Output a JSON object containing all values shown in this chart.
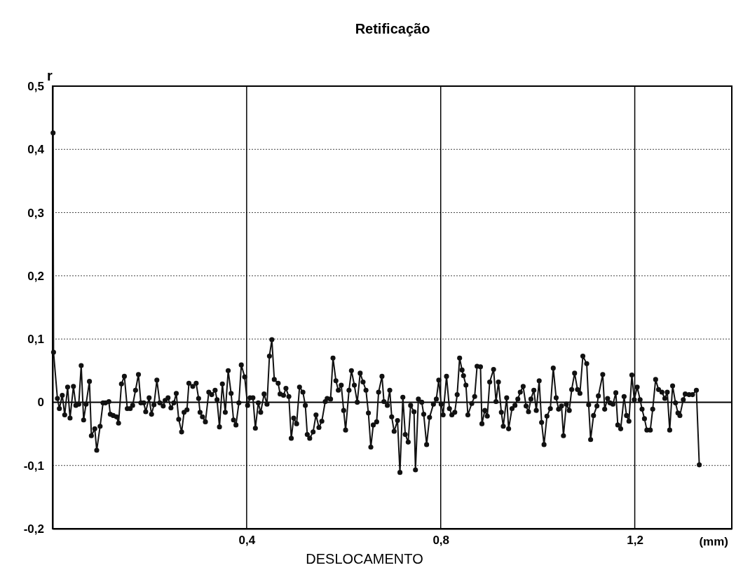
{
  "chart_data": {
    "type": "line",
    "title": "Retificação",
    "xlabel": "DESLOCAMENTO",
    "ylabel": "r",
    "annotations": [
      "(mm)"
    ],
    "xlim": [
      0,
      1.4
    ],
    "xticks": [
      {
        "value": 0.4,
        "label": "0,4"
      },
      {
        "value": 0.8,
        "label": "0,8"
      },
      {
        "value": 1.2,
        "label": "1,2"
      }
    ],
    "ylim": [
      -0.2,
      0.5
    ],
    "yticks": [
      {
        "value": -0.2,
        "label": "-0,2"
      },
      {
        "value": -0.1,
        "label": "-0,1"
      },
      0,
      {
        "value": 0.1,
        "label": "0,1"
      },
      {
        "value": 0.2,
        "label": "0,2"
      },
      {
        "value": 0.3,
        "label": "0,3"
      },
      {
        "value": 0.4,
        "label": "0,4"
      },
      {
        "value": 0.5,
        "label": "0,5"
      }
    ],
    "grid": true,
    "marker": "circle",
    "line_style": "solid",
    "ref_lines": [
      {
        "axis": "y",
        "value": 0,
        "color": "#000000",
        "line_style": "solid"
      }
    ],
    "series": [
      {
        "color": "#111111",
        "x": [
          0.001,
          0.002,
          0.01,
          0.014,
          0.02,
          0.025,
          0.031,
          0.036,
          0.043,
          0.048,
          0.054,
          0.059,
          0.064,
          0.069,
          0.076,
          0.08,
          0.087,
          0.091,
          0.098,
          0.104,
          0.109,
          0.116,
          0.119,
          0.125,
          0.132,
          0.136,
          0.142,
          0.148,
          0.154,
          0.16,
          0.165,
          0.171,
          0.177,
          0.182,
          0.188,
          0.192,
          0.199,
          0.204,
          0.209,
          0.215,
          0.221,
          0.228,
          0.232,
          0.238,
          0.244,
          0.25,
          0.255,
          0.26,
          0.266,
          0.271,
          0.277,
          0.281,
          0.289,
          0.296,
          0.301,
          0.304,
          0.309,
          0.315,
          0.322,
          0.328,
          0.335,
          0.339,
          0.344,
          0.35,
          0.356,
          0.362,
          0.368,
          0.373,
          0.378,
          0.384,
          0.389,
          0.396,
          0.402,
          0.407,
          0.413,
          0.418,
          0.424,
          0.429,
          0.436,
          0.442,
          0.447,
          0.452,
          0.457,
          0.465,
          0.469,
          0.476,
          0.481,
          0.487,
          0.492,
          0.497,
          0.503,
          0.509,
          0.516,
          0.521,
          0.525,
          0.53,
          0.537,
          0.543,
          0.549,
          0.555,
          0.562,
          0.566,
          0.573,
          0.578,
          0.584,
          0.589,
          0.595,
          0.6,
          0.604,
          0.611,
          0.616,
          0.622,
          0.628,
          0.634,
          0.64,
          0.646,
          0.651,
          0.656,
          0.661,
          0.668,
          0.672,
          0.679,
          0.683,
          0.69,
          0.695,
          0.699,
          0.704,
          0.711,
          0.716,
          0.722,
          0.727,
          0.733,
          0.738,
          0.745,
          0.748,
          0.754,
          0.761,
          0.765,
          0.771,
          0.777,
          0.785,
          0.791,
          0.796,
          0.801,
          0.805,
          0.812,
          0.818,
          0.823,
          0.829,
          0.834,
          0.839,
          0.844,
          0.847,
          0.852,
          0.856,
          0.864,
          0.87,
          0.875,
          0.882,
          0.885,
          0.891,
          0.896,
          0.901,
          0.909,
          0.914,
          0.919,
          0.925,
          0.929,
          0.936,
          0.94,
          0.947,
          0.953,
          0.959,
          0.964,
          0.97,
          0.976,
          0.981,
          0.986,
          0.992,
          0.997,
          1.003,
          1.008,
          1.013,
          1.019,
          1.026,
          1.032,
          1.038,
          1.043,
          1.049,
          1.053,
          1.059,
          1.065,
          1.07,
          1.076,
          1.082,
          1.087,
          1.093,
          1.101,
          1.105,
          1.109,
          1.115,
          1.122,
          1.125,
          1.134,
          1.138,
          1.144,
          1.149,
          1.155,
          1.161,
          1.165,
          1.171,
          1.178,
          1.183,
          1.188,
          1.194,
          1.199,
          1.205,
          1.211,
          1.215,
          1.22,
          1.225,
          1.232,
          1.237,
          1.243,
          1.249,
          1.256,
          1.262,
          1.267,
          1.272,
          1.278,
          1.284,
          1.289,
          1.293,
          1.3,
          1.304,
          1.312,
          1.319,
          1.327,
          1.333
        ],
        "values": [
          0.426,
          0.079,
          0.006,
          -0.01,
          0.011,
          -0.02,
          0.024,
          -0.025,
          0.025,
          -0.005,
          -0.003,
          0.058,
          -0.028,
          -0.003,
          0.033,
          -0.053,
          -0.042,
          -0.076,
          -0.038,
          -0.001,
          -0.001,
          0.001,
          -0.019,
          -0.021,
          -0.023,
          -0.033,
          0.029,
          0.041,
          -0.01,
          -0.01,
          -0.005,
          0.019,
          0.044,
          -0.001,
          -0.001,
          -0.015,
          0.007,
          -0.019,
          -0.004,
          0.035,
          -0.001,
          -0.006,
          0.003,
          0.007,
          -0.009,
          -0.001,
          0.014,
          -0.027,
          -0.047,
          -0.016,
          -0.012,
          0.03,
          0.025,
          0.03,
          0.006,
          -0.016,
          -0.023,
          -0.031,
          0.016,
          0.012,
          0.019,
          0.004,
          -0.039,
          0.029,
          -0.016,
          0.05,
          0.014,
          -0.028,
          -0.036,
          -0.001,
          0.059,
          0.04,
          -0.005,
          0.007,
          0.007,
          -0.041,
          -0.001,
          -0.016,
          0.013,
          -0.003,
          0.073,
          0.099,
          0.036,
          0.03,
          0.013,
          0.011,
          0.022,
          0.009,
          -0.057,
          -0.025,
          -0.034,
          0.024,
          0.016,
          -0.005,
          -0.051,
          -0.057,
          -0.047,
          -0.02,
          -0.04,
          -0.03,
          0.001,
          0.006,
          0.005,
          0.07,
          0.034,
          0.019,
          0.027,
          -0.013,
          -0.044,
          0.019,
          0.05,
          0.027,
          0.0,
          0.046,
          0.032,
          0.019,
          -0.017,
          -0.071,
          -0.036,
          -0.031,
          0.016,
          0.041,
          0.001,
          -0.005,
          0.019,
          -0.023,
          -0.046,
          -0.029,
          -0.111,
          0.008,
          -0.051,
          -0.063,
          -0.005,
          -0.015,
          -0.107,
          0.005,
          0.0,
          -0.019,
          -0.067,
          -0.024,
          -0.003,
          0.005,
          0.035,
          -0.003,
          -0.02,
          0.041,
          -0.01,
          -0.02,
          -0.016,
          0.012,
          0.07,
          0.051,
          0.042,
          0.027,
          -0.02,
          -0.002,
          0.009,
          0.057,
          0.056,
          -0.034,
          -0.013,
          -0.022,
          0.032,
          0.052,
          0.001,
          0.032,
          -0.016,
          -0.038,
          0.007,
          -0.042,
          -0.01,
          -0.005,
          0.005,
          0.016,
          0.025,
          -0.006,
          -0.015,
          0.005,
          0.019,
          -0.013,
          0.034,
          -0.032,
          -0.067,
          -0.022,
          -0.01,
          0.054,
          0.007,
          -0.011,
          -0.006,
          -0.053,
          -0.003,
          -0.013,
          0.02,
          0.046,
          0.02,
          0.014,
          0.073,
          0.061,
          -0.004,
          -0.059,
          -0.021,
          -0.006,
          0.01,
          0.044,
          -0.011,
          0.006,
          -0.001,
          -0.003,
          0.015,
          -0.036,
          -0.042,
          0.009,
          -0.021,
          -0.03,
          0.043,
          0.004,
          0.024,
          0.004,
          -0.011,
          -0.026,
          -0.044,
          -0.044,
          -0.011,
          0.036,
          0.02,
          0.016,
          0.006,
          0.016,
          -0.044,
          0.026,
          -0.001,
          -0.017,
          -0.021,
          0.004,
          0.013,
          0.012,
          0.012,
          0.019,
          -0.099
        ]
      }
    ]
  }
}
